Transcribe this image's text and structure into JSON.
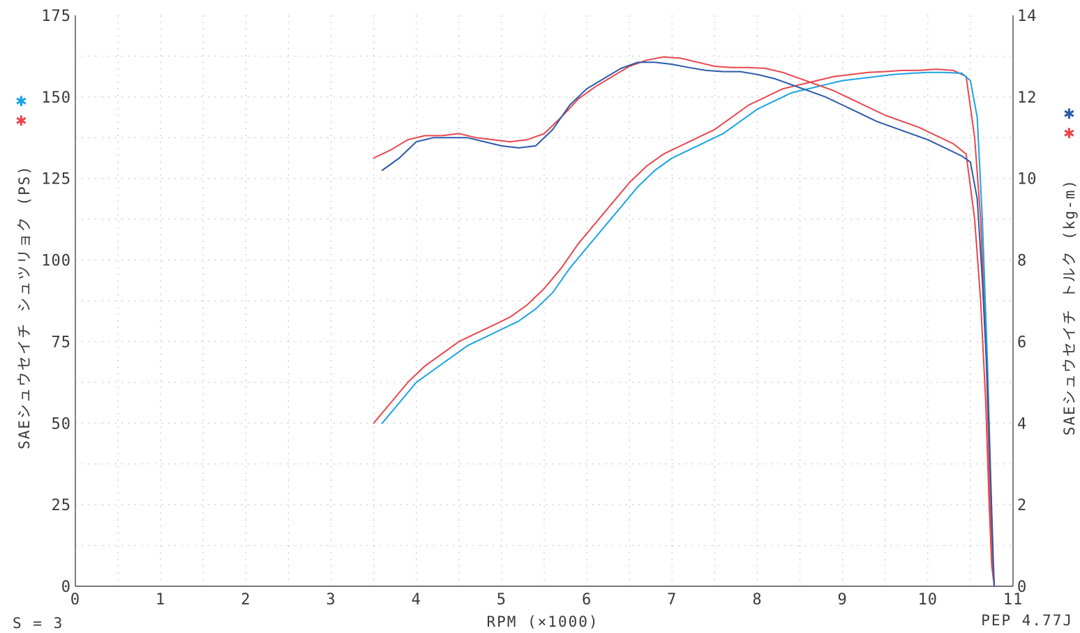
{
  "chart_data": {
    "type": "line",
    "title": "",
    "xlabel": "RPM (×1000)",
    "ylabel_left": "SAEシュウセイチ シュツリョク (PS)",
    "ylabel_right": "SAEシュウセイチ トルク (kg-m)",
    "xlim": [
      0,
      11
    ],
    "ylim_left": [
      0,
      175
    ],
    "ylim_right": [
      0,
      14
    ],
    "x_ticks": [
      "0",
      "1",
      "2",
      "3",
      "4",
      "5",
      "6",
      "7",
      "8",
      "9",
      "10",
      "11"
    ],
    "y_ticks_left": [
      "0",
      "25",
      "50",
      "75",
      "100",
      "125",
      "150",
      "175"
    ],
    "y_ticks_right": [
      "0",
      "2",
      "4",
      "6",
      "8",
      "10",
      "12",
      "14"
    ],
    "grid": true,
    "series": [
      {
        "key": "power_red",
        "axis": "left",
        "color": "#e8474e",
        "x": [
          3.5,
          3.7,
          3.9,
          4.1,
          4.3,
          4.5,
          4.7,
          4.9,
          5.1,
          5.3,
          5.5,
          5.7,
          5.9,
          6.1,
          6.3,
          6.5,
          6.7,
          6.9,
          7.1,
          7.3,
          7.5,
          7.7,
          7.9,
          8.1,
          8.3,
          8.5,
          8.7,
          8.9,
          9.1,
          9.3,
          9.5,
          9.7,
          9.9,
          10.1,
          10.3,
          10.45,
          10.55,
          10.62,
          10.68,
          10.72,
          10.75,
          10.78
        ],
        "y": [
          4.0,
          4.5,
          5.0,
          5.4,
          5.7,
          6.0,
          6.2,
          6.4,
          6.6,
          6.9,
          7.3,
          7.8,
          8.4,
          8.9,
          9.4,
          9.9,
          10.3,
          10.6,
          10.8,
          11.0,
          11.2,
          11.5,
          11.8,
          12.0,
          12.2,
          12.3,
          12.4,
          12.5,
          12.55,
          12.6,
          12.62,
          12.65,
          12.65,
          12.68,
          12.65,
          12.5,
          11.0,
          9.0,
          6.0,
          3.0,
          1.0,
          0.0
        ]
      },
      {
        "key": "power_blue",
        "axis": "left",
        "color": "#1aa3e3",
        "x": [
          3.6,
          3.8,
          4.0,
          4.2,
          4.4,
          4.6,
          4.8,
          5.0,
          5.2,
          5.4,
          5.6,
          5.8,
          6.0,
          6.2,
          6.4,
          6.6,
          6.8,
          7.0,
          7.2,
          7.4,
          7.6,
          7.8,
          8.0,
          8.2,
          8.4,
          8.6,
          8.8,
          9.0,
          9.2,
          9.4,
          9.6,
          9.8,
          10.0,
          10.2,
          10.4,
          10.5,
          10.58,
          10.64,
          10.7,
          10.74,
          10.77,
          10.78
        ],
        "y": [
          4.0,
          4.5,
          5.0,
          5.3,
          5.6,
          5.9,
          6.1,
          6.3,
          6.5,
          6.8,
          7.2,
          7.8,
          8.3,
          8.8,
          9.3,
          9.8,
          10.2,
          10.5,
          10.7,
          10.9,
          11.1,
          11.4,
          11.7,
          11.9,
          12.1,
          12.2,
          12.3,
          12.4,
          12.45,
          12.5,
          12.55,
          12.58,
          12.6,
          12.6,
          12.58,
          12.4,
          11.5,
          9.0,
          5.5,
          2.5,
          0.5,
          0.0
        ]
      },
      {
        "key": "torque_red",
        "axis": "right",
        "color": "#e8474e",
        "x": [
          3.5,
          3.7,
          3.9,
          4.1,
          4.3,
          4.5,
          4.7,
          4.9,
          5.1,
          5.3,
          5.5,
          5.7,
          5.9,
          6.1,
          6.3,
          6.5,
          6.7,
          6.9,
          7.1,
          7.3,
          7.5,
          7.7,
          7.9,
          8.1,
          8.3,
          8.5,
          8.7,
          8.9,
          9.1,
          9.3,
          9.5,
          9.7,
          9.9,
          10.1,
          10.3,
          10.45,
          10.55,
          10.62,
          10.68,
          10.72,
          10.75,
          10.78
        ],
        "y": [
          10.5,
          10.7,
          10.95,
          11.05,
          11.05,
          11.1,
          11.0,
          10.95,
          10.9,
          10.95,
          11.1,
          11.5,
          11.95,
          12.25,
          12.5,
          12.75,
          12.9,
          12.98,
          12.95,
          12.85,
          12.75,
          12.72,
          12.72,
          12.7,
          12.6,
          12.45,
          12.3,
          12.15,
          11.95,
          11.75,
          11.55,
          11.4,
          11.25,
          11.05,
          10.85,
          10.6,
          9.0,
          7.0,
          4.5,
          2.0,
          0.5,
          0.0
        ]
      },
      {
        "key": "torque_blue",
        "axis": "right",
        "color": "#2c5aa8",
        "x": [
          3.6,
          3.8,
          4.0,
          4.2,
          4.4,
          4.6,
          4.8,
          5.0,
          5.2,
          5.4,
          5.6,
          5.8,
          6.0,
          6.2,
          6.4,
          6.6,
          6.8,
          7.0,
          7.2,
          7.4,
          7.6,
          7.8,
          8.0,
          8.2,
          8.4,
          8.6,
          8.8,
          9.0,
          9.2,
          9.4,
          9.6,
          9.8,
          10.0,
          10.2,
          10.4,
          10.5,
          10.58,
          10.64,
          10.7,
          10.74,
          10.77,
          10.78
        ],
        "y": [
          10.2,
          10.5,
          10.9,
          11.0,
          11.0,
          11.0,
          10.9,
          10.8,
          10.75,
          10.8,
          11.2,
          11.8,
          12.2,
          12.45,
          12.7,
          12.85,
          12.85,
          12.8,
          12.72,
          12.65,
          12.62,
          12.62,
          12.55,
          12.45,
          12.3,
          12.15,
          12.0,
          11.8,
          11.6,
          11.4,
          11.25,
          11.1,
          10.95,
          10.75,
          10.55,
          10.4,
          9.5,
          7.5,
          5.0,
          2.5,
          0.5,
          0.0
        ]
      }
    ]
  },
  "footer": {
    "smoothing": "S = 3",
    "code": "PEP 4.77J"
  },
  "legend": {
    "left_marker_1_color": "#1aa3e3",
    "left_marker_2_color": "#e8474e",
    "right_marker_1_color": "#2c5aa8",
    "right_marker_2_color": "#e8474e",
    "marker_glyph": "✱"
  }
}
